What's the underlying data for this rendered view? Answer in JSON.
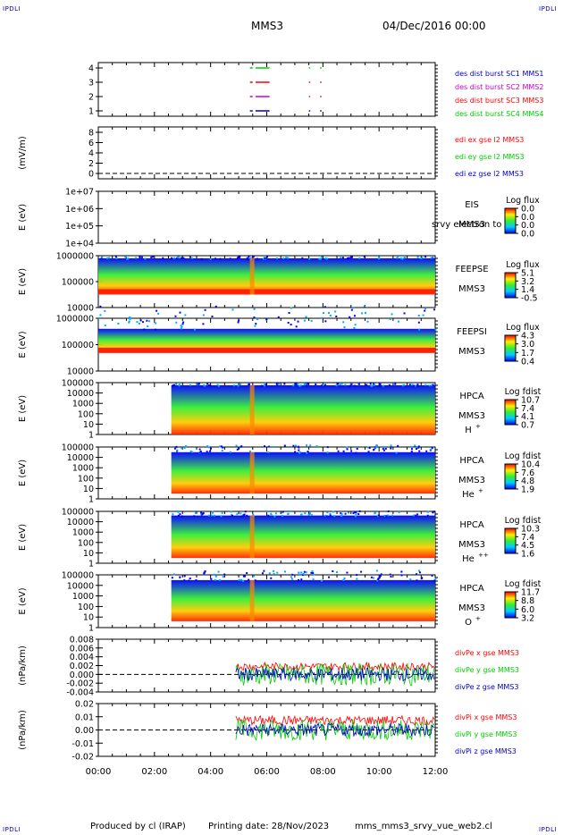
{
  "header": {
    "corner_tl": "IPDLI",
    "corner_tr": "IPDLI",
    "corner_bl": "IPDLI",
    "corner_br": "IPDLI",
    "spacecraft": "MMS3",
    "date": "04/Dec/2016 00:00"
  },
  "footer": {
    "produced_by": "Produced by cl (IRAP)",
    "printing_date": "Printing date: 28/Nov/2023",
    "filename": "mms_mms3_srvy_vue_web2.cl"
  },
  "colors": {
    "red": "#ff0000",
    "green": "#00cc00",
    "blue": "#0000cc",
    "magenta": "#cc00cc",
    "spectrogram_low": "#0000ff",
    "spectrogram_high": "#ff0000"
  },
  "chart_data": [
    {
      "type": "timeline",
      "id": "burst",
      "ylim": [
        0.5,
        4.5
      ],
      "yticks": [
        "1",
        "2",
        "3",
        "4"
      ],
      "xlim": [
        0,
        12
      ],
      "series": [
        {
          "name": "des dist burst SC1 MMS1",
          "color": "#0000cc",
          "level": 1,
          "intervals": [
            [
              5.4,
              5.5
            ],
            [
              5.6,
              6.1
            ],
            [
              7.5,
              7.55
            ],
            [
              7.9,
              7.95
            ]
          ]
        },
        {
          "name": "des dist burst SC2 MMS2",
          "color": "#cc00cc",
          "level": 2,
          "intervals": [
            [
              5.4,
              5.5
            ],
            [
              5.6,
              6.1
            ],
            [
              7.5,
              7.55
            ],
            [
              7.9,
              7.95
            ]
          ]
        },
        {
          "name": "des dist burst SC3 MMS3",
          "color": "#ff0000",
          "level": 3,
          "intervals": [
            [
              5.4,
              5.5
            ],
            [
              5.6,
              6.1
            ],
            [
              7.5,
              7.55
            ],
            [
              7.9,
              7.95
            ]
          ]
        },
        {
          "name": "des dist burst SC4 MMS4",
          "color": "#00cc00",
          "level": 4,
          "intervals": [
            [
              5.4,
              5.5
            ],
            [
              5.6,
              6.1
            ],
            [
              7.5,
              7.55
            ],
            [
              7.9,
              7.95
            ]
          ]
        }
      ]
    },
    {
      "type": "line",
      "id": "edi",
      "ylabel": "(mV/m)",
      "ylim": [
        0,
        8
      ],
      "yticks": [
        "0",
        "2",
        "4",
        "6",
        "8"
      ],
      "zero_line": 0,
      "series": [
        {
          "name": "edi ex gse l2 MMS3",
          "color": "#ff0000"
        },
        {
          "name": "edi ey gse l2 MMS3",
          "color": "#00cc00"
        },
        {
          "name": "edi ez gse l2 MMS3",
          "color": "#0000cc"
        }
      ]
    },
    {
      "type": "heatmap",
      "id": "eis",
      "ylabel": "E (eV)",
      "yticks": [
        "1e+07",
        "1e+06",
        "1e+05",
        "1e+04"
      ],
      "instrument": "EIS",
      "instrument_overlay": "srvy electron to",
      "spacecraft": "MMS3",
      "colorbar_title": "Log flux",
      "colorbar_ticks": [
        "0.0",
        "0.0",
        "0.0",
        "0.0"
      ],
      "data_start_hour": null
    },
    {
      "type": "heatmap",
      "id": "feepse",
      "ylabel": "E (eV)",
      "yticks": [
        "1000000",
        "100000",
        "10000"
      ],
      "instrument": "FEEPSE",
      "spacecraft": "MMS3",
      "colorbar_title": "Log flux",
      "colorbar_ticks": [
        "5.1",
        "3.2",
        "1.4",
        "-0.5"
      ],
      "data_start_hour": 0.0
    },
    {
      "type": "heatmap",
      "id": "feepsi",
      "ylabel": "E (eV)",
      "yticks": [
        "1000000",
        "100000",
        "10000"
      ],
      "instrument": "FEEPSI",
      "spacecraft": "MMS3",
      "colorbar_title": "Log flux",
      "colorbar_ticks": [
        "4.3",
        "3.0",
        "1.7",
        "0.4"
      ],
      "data_start_hour": 0.0
    },
    {
      "type": "heatmap",
      "id": "hpca_h",
      "ylabel": "E (eV)",
      "yticks": [
        "100000",
        "10000",
        "1000",
        "100",
        "10",
        "1"
      ],
      "instrument": "HPCA",
      "spacecraft": "MMS3",
      "species": "H",
      "species_sup": "+",
      "colorbar_title": "Log fdist",
      "colorbar_ticks": [
        "10.7",
        "7.4",
        "4.1",
        "0.7"
      ],
      "data_start_hour": 2.6
    },
    {
      "type": "heatmap",
      "id": "hpca_he",
      "ylabel": "E (eV)",
      "yticks": [
        "100000",
        "10000",
        "1000",
        "100",
        "10",
        "1"
      ],
      "instrument": "HPCA",
      "spacecraft": "MMS3",
      "species": "He",
      "species_sup": "+",
      "colorbar_title": "Log fdist",
      "colorbar_ticks": [
        "10.4",
        "7.6",
        "4.8",
        "1.9"
      ],
      "data_start_hour": 2.6
    },
    {
      "type": "heatmap",
      "id": "hpca_hepp",
      "ylabel": "E (eV)",
      "yticks": [
        "100000",
        "10000",
        "1000",
        "100",
        "10",
        "1"
      ],
      "instrument": "HPCA",
      "spacecraft": "MMS3",
      "species": "He",
      "species_sup": "++",
      "colorbar_title": "Log fdist",
      "colorbar_ticks": [
        "10.3",
        "7.4",
        "4.5",
        "1.6"
      ],
      "data_start_hour": 2.6
    },
    {
      "type": "heatmap",
      "id": "hpca_o",
      "ylabel": "E (eV)",
      "yticks": [
        "100000",
        "10000",
        "1000",
        "100",
        "10",
        "1"
      ],
      "instrument": "HPCA",
      "spacecraft": "MMS3",
      "species": "O",
      "species_sup": "+",
      "colorbar_title": "Log fdist",
      "colorbar_ticks": [
        "11.7",
        "8.8",
        "6.0",
        "3.2"
      ],
      "data_start_hour": 2.6
    },
    {
      "type": "line",
      "id": "divpe",
      "ylabel": "(nPa/km)",
      "ylim": [
        -0.005,
        0.008
      ],
      "yticks": [
        "0.008",
        "0.006",
        "0.004",
        "0.002",
        "0.000",
        "-0.002",
        "-0.004"
      ],
      "zero_line": 0,
      "data_start_hour": 4.9,
      "series": [
        {
          "name": "divPe x gse MMS3",
          "color": "#ff0000",
          "amplitude": 0.003
        },
        {
          "name": "divPe y gse MMS3",
          "color": "#00cc00",
          "amplitude": 0.0025
        },
        {
          "name": "divPe z gse MMS3",
          "color": "#0000cc",
          "amplitude": 0.0015
        }
      ]
    },
    {
      "type": "line",
      "id": "divpi",
      "ylabel": "(nPa/km)",
      "ylim": [
        -0.025,
        0.025
      ],
      "yticks": [
        "0.02",
        "0.01",
        "0.00",
        "-0.01",
        "-0.02"
      ],
      "zero_line": 0,
      "data_start_hour": 4.9,
      "series": [
        {
          "name": "divPi x gse MMS3",
          "color": "#ff0000",
          "amplitude": 0.012
        },
        {
          "name": "divPi y gse MMS3",
          "color": "#00cc00",
          "amplitude": 0.008
        },
        {
          "name": "divPi z gse MMS3",
          "color": "#0000cc",
          "amplitude": 0.005
        }
      ]
    }
  ],
  "x_axis": {
    "xlim": [
      0,
      12
    ],
    "ticks": [
      "00:00",
      "02:00",
      "04:00",
      "06:00",
      "08:00",
      "10:00",
      "12:00"
    ],
    "tick_hours": [
      0,
      2,
      4,
      6,
      8,
      10,
      12
    ]
  }
}
